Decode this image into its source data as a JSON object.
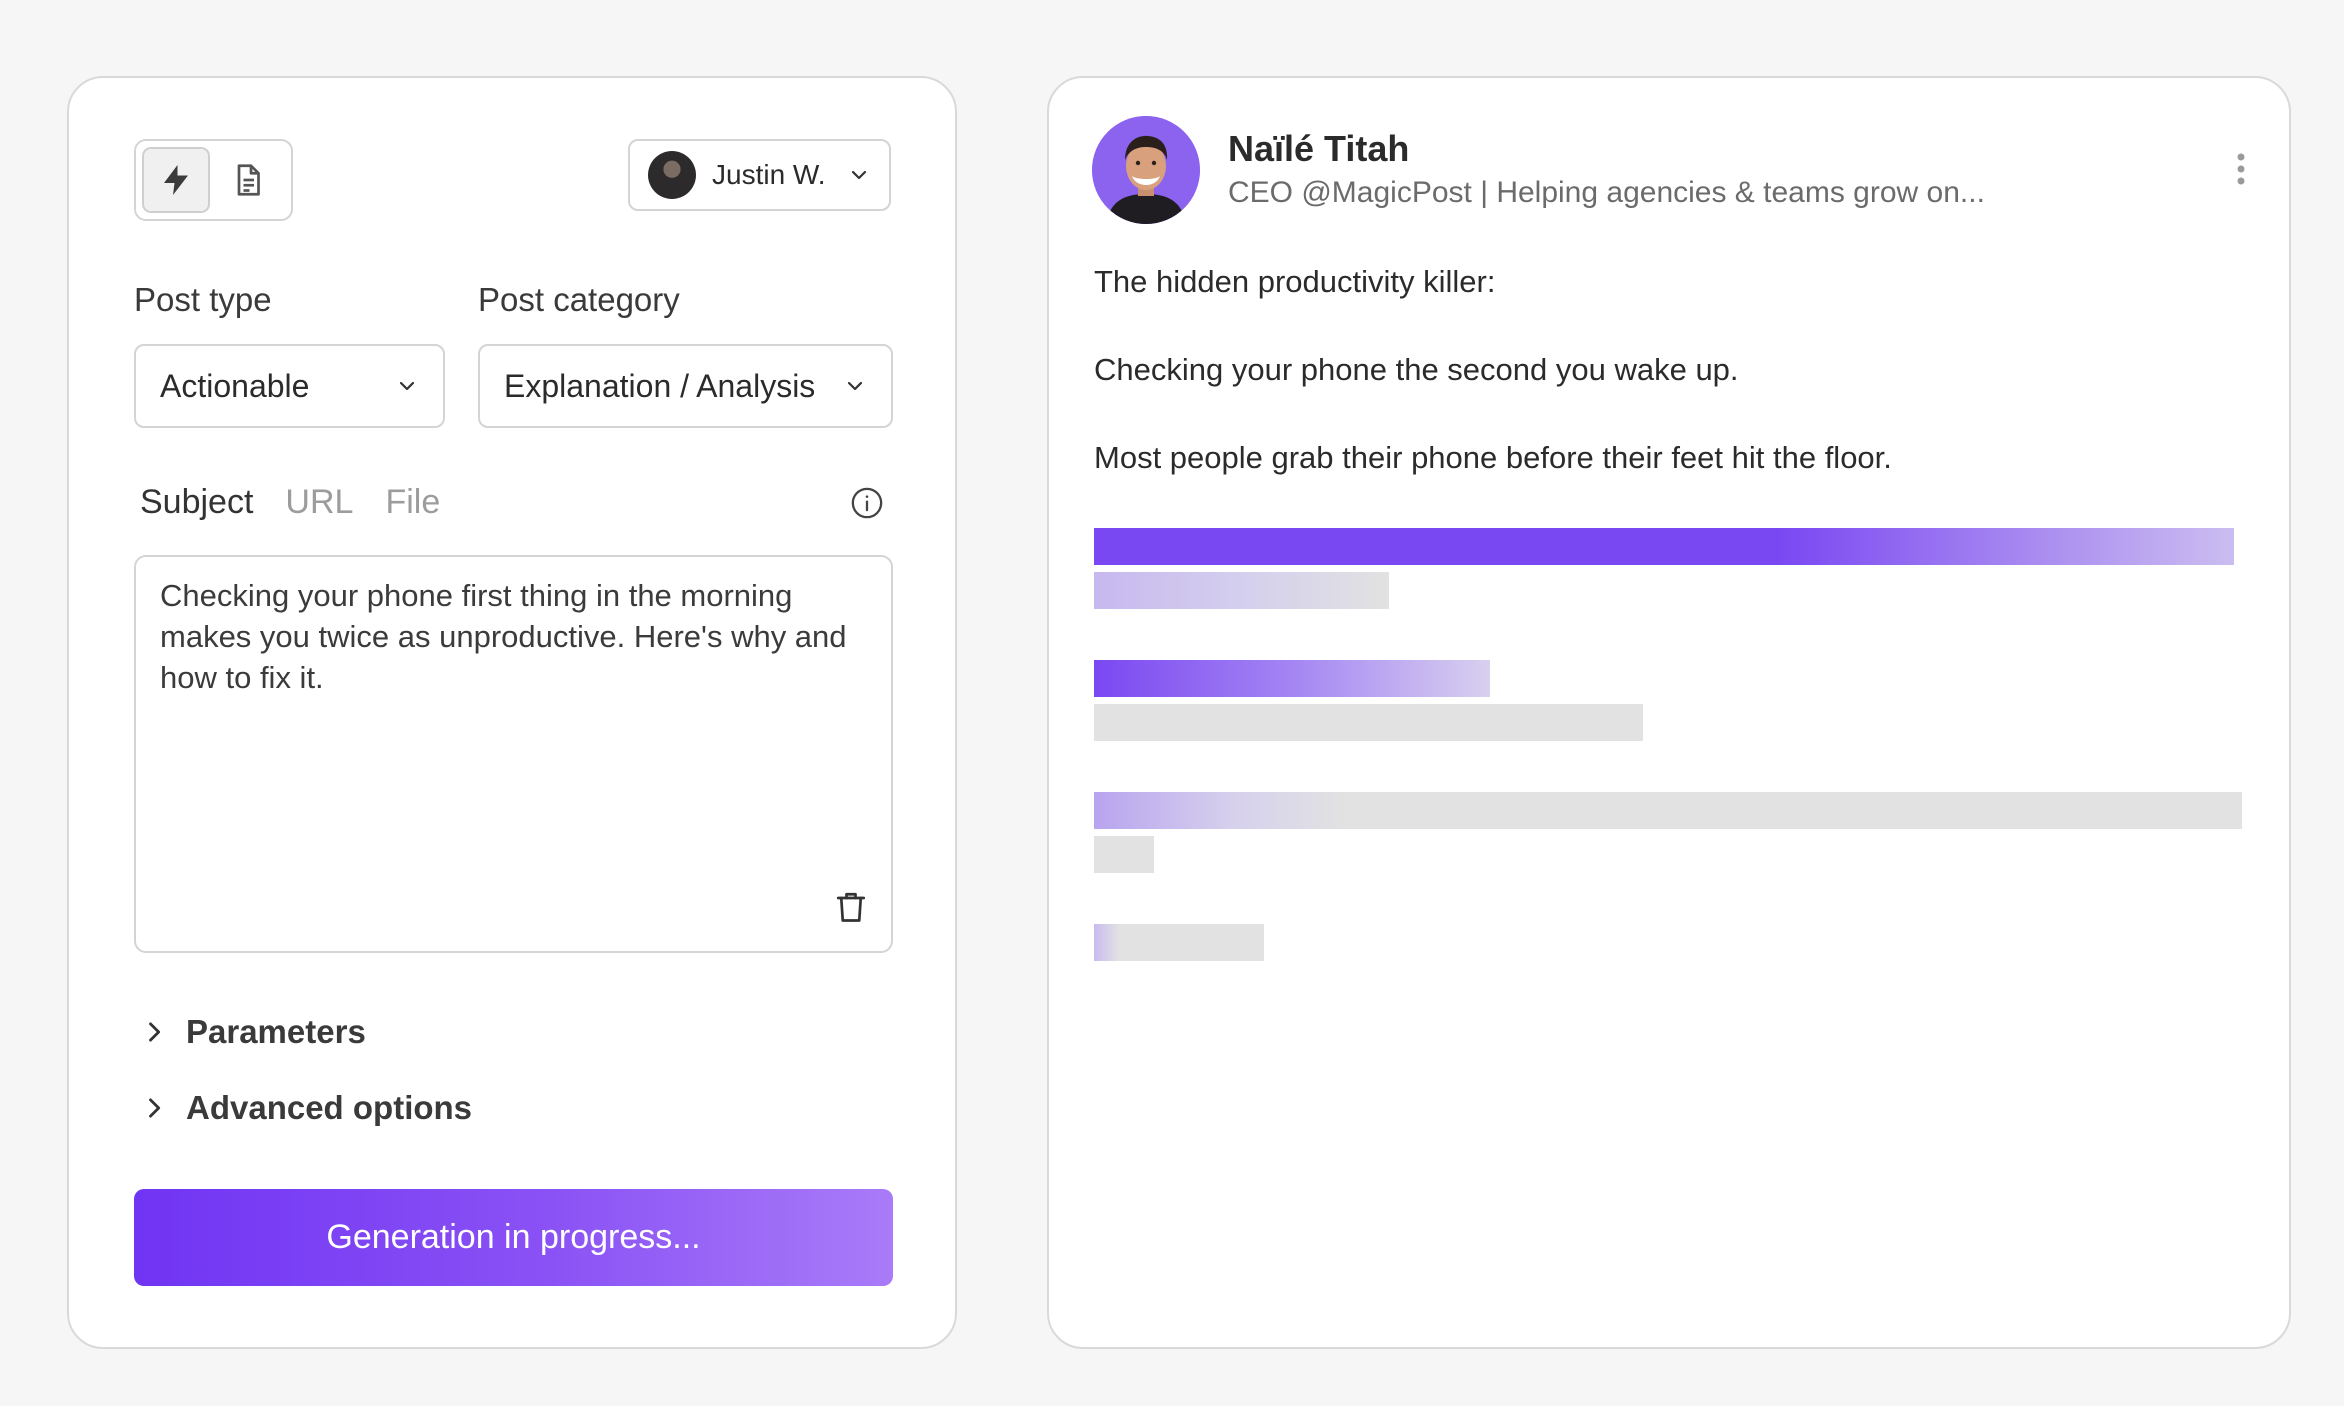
{
  "left_panel": {
    "mode_toggle": {
      "options": [
        {
          "icon": "lightning-icon",
          "active": true
        },
        {
          "icon": "document-icon",
          "active": false
        }
      ]
    },
    "account": {
      "name": "Justin W."
    },
    "post_type": {
      "label": "Post type",
      "value": "Actionable"
    },
    "post_category": {
      "label": "Post category",
      "value": "Explanation / Analysis"
    },
    "source_tabs": [
      {
        "label": "Subject",
        "active": true
      },
      {
        "label": "URL",
        "active": false
      },
      {
        "label": "File",
        "active": false
      }
    ],
    "subject_text": "Checking your phone first thing in the morning makes you twice as unproductive. Here's why and how to fix it.",
    "expanders": {
      "parameters": "Parameters",
      "advanced": "Advanced options"
    },
    "generate_button": "Generation in progress..."
  },
  "right_panel": {
    "profile": {
      "name": "Naïlé Titah",
      "headline": "CEO @MagicPost | Helping agencies & teams grow on..."
    },
    "post_lines": [
      "The hidden productivity killer:",
      "Checking your phone the second you wake up.",
      "Most people grab their phone before their feet hit the floor."
    ]
  },
  "colors": {
    "accent": "#7034f3",
    "accent_light": "#a97bf8",
    "skeleton_gray": "#e2e2e2",
    "background": "#f5f6f5"
  }
}
